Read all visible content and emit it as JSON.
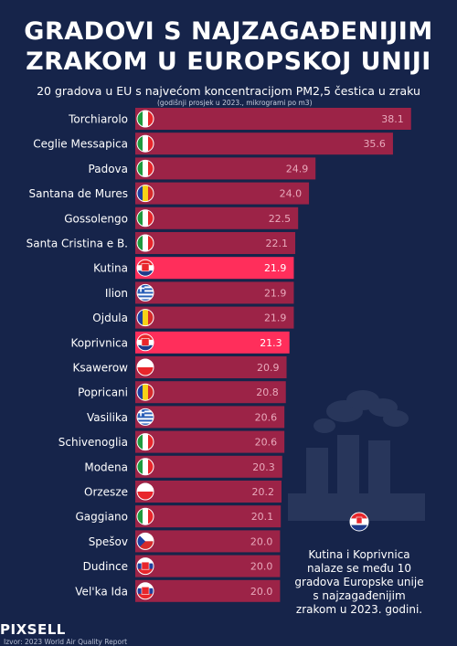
{
  "title_line1": "GRADOVI S NAJZAGAĐENIJIM",
  "title_line2": "ZRAKOM U EUROPSKOJ UNIJI",
  "subtitle": "20 gradova u EU s najvećom koncentracijom PM2,5 čestica u zraku",
  "note": "(godišnji prosjek u 2023., mikrogrami po m3)",
  "callout": "Kutina i Koprivnica nalaze se među 10 gradova Europske unije s najzagađenijim zrakom u 2023. godini.",
  "logo": "PIXSELL",
  "source": "Izvor: 2023 World Air Quality Report",
  "colors": {
    "background": "#16244a",
    "bar": "#9c2347",
    "bar_highlight": "#ff2e5b"
  },
  "chart_data": {
    "type": "bar",
    "orientation": "horizontal",
    "categories": [
      "Torchiarolo",
      "Ceglie Messapica",
      "Padova",
      "Santana de Mures",
      "Gossolengo",
      "Santa Cristina e B.",
      "Kutina",
      "Ilion",
      "Ojdula",
      "Koprivnica",
      "Ksawerow",
      "Popricani",
      "Vasilika",
      "Schivenoglia",
      "Modena",
      "Orzesze",
      "Gaggiano",
      "Spešov",
      "Dudince",
      "Vel'ka Ida"
    ],
    "values": [
      38.1,
      35.6,
      24.9,
      24.0,
      22.5,
      22.1,
      21.9,
      21.9,
      21.9,
      21.3,
      20.9,
      20.8,
      20.6,
      20.6,
      20.3,
      20.2,
      20.1,
      20.0,
      20.0,
      20.0
    ],
    "value_labels": [
      "38.1",
      "35.6",
      "24.9",
      "24.0",
      "22.5",
      "22.1",
      "21.9",
      "21.9",
      "21.9",
      "21.3",
      "20.9",
      "20.8",
      "20.6",
      "20.6",
      "20.3",
      "20.2",
      "20.1",
      "20.0",
      "20.0",
      "20.0"
    ],
    "flags": [
      "italy-flag-icon",
      "italy-flag-icon",
      "italy-flag-icon",
      "romania-flag-icon",
      "italy-flag-icon",
      "italy-flag-icon",
      "croatia-flag-icon",
      "greece-flag-icon",
      "romania-flag-icon",
      "croatia-flag-icon",
      "poland-flag-icon",
      "romania-flag-icon",
      "greece-flag-icon",
      "italy-flag-icon",
      "italy-flag-icon",
      "poland-flag-icon",
      "italy-flag-icon",
      "czechia-flag-icon",
      "slovakia-flag-icon",
      "slovakia-flag-icon"
    ],
    "highlighted": [
      "Kutina",
      "Koprivnica"
    ]
  }
}
